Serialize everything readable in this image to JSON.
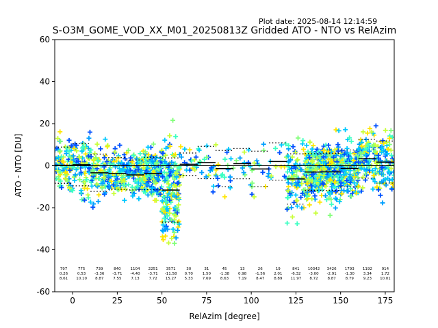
{
  "plot_date": "Plot date: 2025-08-14 12:14:59",
  "chart_data": {
    "type": "scatter",
    "title": "S-O3M_GOME_VOD_XX_M01_20250813Z Gridded ATO - NTO vs RelAzim",
    "xlabel": "RelAzim [degree]",
    "ylabel": "ATO - NTO [DU]",
    "xlim": [
      -10,
      180
    ],
    "ylim": [
      -60,
      60
    ],
    "xticks": [
      0,
      25,
      50,
      75,
      100,
      125,
      150,
      175
    ],
    "yticks": [
      -60,
      -40,
      -20,
      0,
      20,
      40,
      60
    ],
    "grid": false,
    "zero_line": 0,
    "bins": [
      {
        "x": -5,
        "n": "797",
        "mean": "0.26",
        "std": "8.61"
      },
      {
        "x": 5,
        "n": "775",
        "mean": "0.53",
        "std": "10.10"
      },
      {
        "x": 15,
        "n": "739",
        "mean": "-3.36",
        "std": "8.87"
      },
      {
        "x": 25,
        "n": "840",
        "mean": "-3.71",
        "std": "7.55"
      },
      {
        "x": 35,
        "n": "1104",
        "mean": "-4.40",
        "std": "7.13"
      },
      {
        "x": 45,
        "n": "2251",
        "mean": "-3.71",
        "std": "7.72"
      },
      {
        "x": 55,
        "n": "3571",
        "mean": "-11.58",
        "std": "15.27"
      },
      {
        "x": 65,
        "n": "30",
        "mean": "0.70",
        "std": "5.33"
      },
      {
        "x": 75,
        "n": "31",
        "mean": "1.50",
        "std": "7.69"
      },
      {
        "x": 85,
        "n": "45",
        "mean": "-1.38",
        "std": "8.63"
      },
      {
        "x": 95,
        "n": "13",
        "mean": "0.98",
        "std": "7.19"
      },
      {
        "x": 105,
        "n": "26",
        "mean": "-1.56",
        "std": "8.47"
      },
      {
        "x": 115,
        "n": "19",
        "mean": "2.01",
        "std": "8.89"
      },
      {
        "x": 125,
        "n": "841",
        "mean": "-6.32",
        "std": "11.97"
      },
      {
        "x": 135,
        "n": "10342",
        "mean": "-3.00",
        "std": "8.72"
      },
      {
        "x": 145,
        "n": "3426",
        "mean": "-2.91",
        "std": "8.87"
      },
      {
        "x": 155,
        "n": "1793",
        "mean": "-1.30",
        "std": "8.79"
      },
      {
        "x": 165,
        "n": "1192",
        "mean": "3.34",
        "std": "9.23"
      },
      {
        "x": 175,
        "n": "914",
        "mean": "1.72",
        "std": "10.01"
      }
    ],
    "scatter_colors": [
      "#3cffc3",
      "#83ff7b",
      "#c8ff37",
      "#ffe600",
      "#00c8ff",
      "#0050ff",
      "#00a0ff"
    ],
    "mean_line_color": "#000000"
  }
}
